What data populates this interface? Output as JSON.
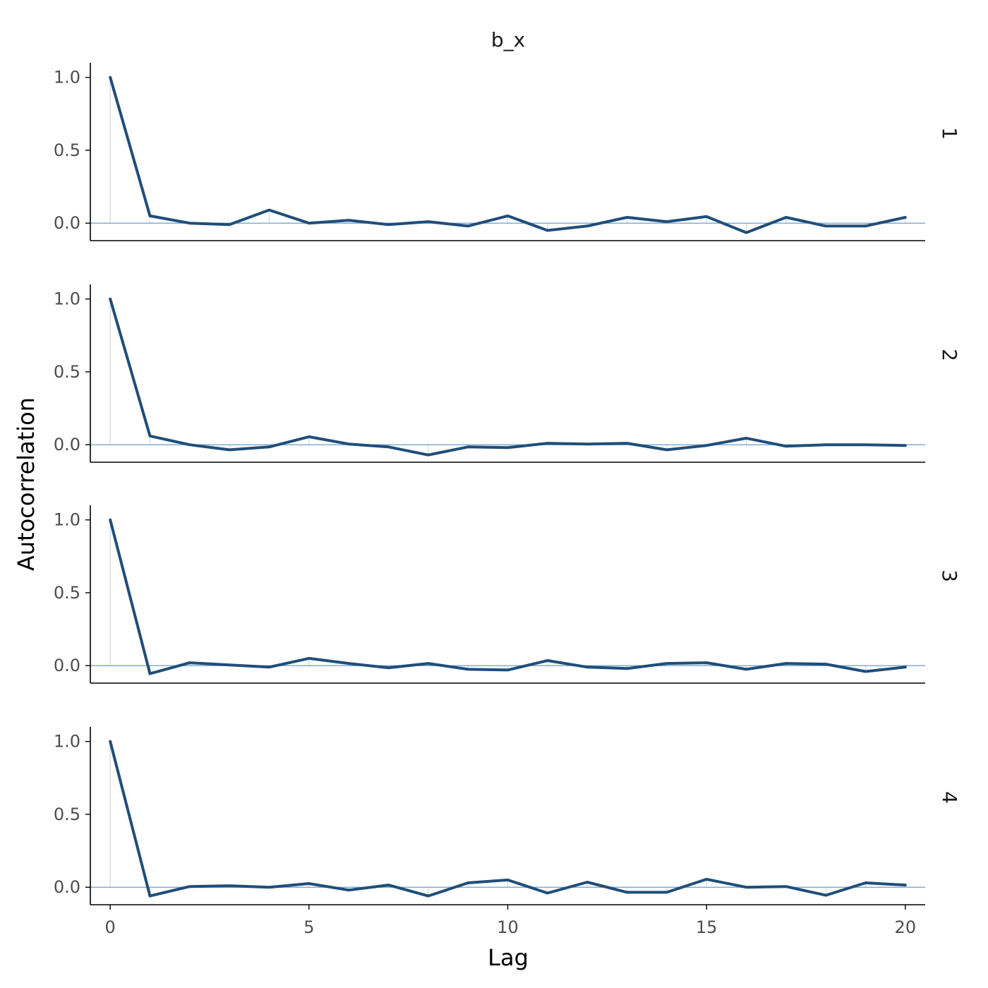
{
  "chart_data": {
    "type": "line",
    "title": "b_x",
    "xlabel": "Lag",
    "ylabel": "Autocorrelation",
    "x": [
      0,
      1,
      2,
      3,
      4,
      5,
      6,
      7,
      8,
      9,
      10,
      11,
      12,
      13,
      14,
      15,
      16,
      17,
      18,
      19,
      20
    ],
    "xlim": [
      -0.5,
      20.5
    ],
    "xticks": [
      0,
      5,
      10,
      15,
      20
    ],
    "ylim": [
      -0.12,
      1.1
    ],
    "yticks": [
      0.0,
      0.5,
      1.0
    ],
    "ytick_labels": [
      "0.0",
      "0.5",
      "1.0"
    ],
    "grid": false,
    "legend": "none",
    "facet_strip": "right",
    "colors": {
      "line": "#1f4e79",
      "zero_line": "#6d9ec7",
      "stem": "#c8dbe9",
      "axis": "#000000"
    },
    "panels": [
      {
        "name": "1",
        "values": [
          1.0,
          0.05,
          0.0,
          -0.01,
          0.09,
          0.0,
          0.02,
          -0.01,
          0.01,
          -0.02,
          0.05,
          -0.05,
          -0.02,
          0.04,
          0.01,
          0.045,
          -0.065,
          0.04,
          -0.02,
          -0.02,
          0.04
        ]
      },
      {
        "name": "2",
        "values": [
          1.0,
          0.06,
          0.0,
          -0.035,
          -0.015,
          0.055,
          0.005,
          -0.015,
          -0.07,
          -0.015,
          -0.02,
          0.01,
          0.005,
          0.01,
          -0.035,
          -0.005,
          0.045,
          -0.01,
          0.0,
          0.0,
          -0.005
        ]
      },
      {
        "name": "3",
        "values": [
          1.0,
          -0.055,
          0.02,
          0.005,
          -0.01,
          0.05,
          0.015,
          -0.015,
          0.015,
          -0.025,
          -0.03,
          0.035,
          -0.01,
          -0.02,
          0.015,
          0.02,
          -0.025,
          0.015,
          0.01,
          -0.04,
          -0.01
        ]
      },
      {
        "name": "4",
        "values": [
          1.0,
          -0.06,
          0.005,
          0.01,
          0.0,
          0.025,
          -0.02,
          0.015,
          -0.06,
          0.03,
          0.05,
          -0.04,
          0.035,
          -0.035,
          -0.035,
          0.055,
          0.0,
          0.005,
          -0.055,
          0.03,
          0.015
        ]
      }
    ]
  }
}
